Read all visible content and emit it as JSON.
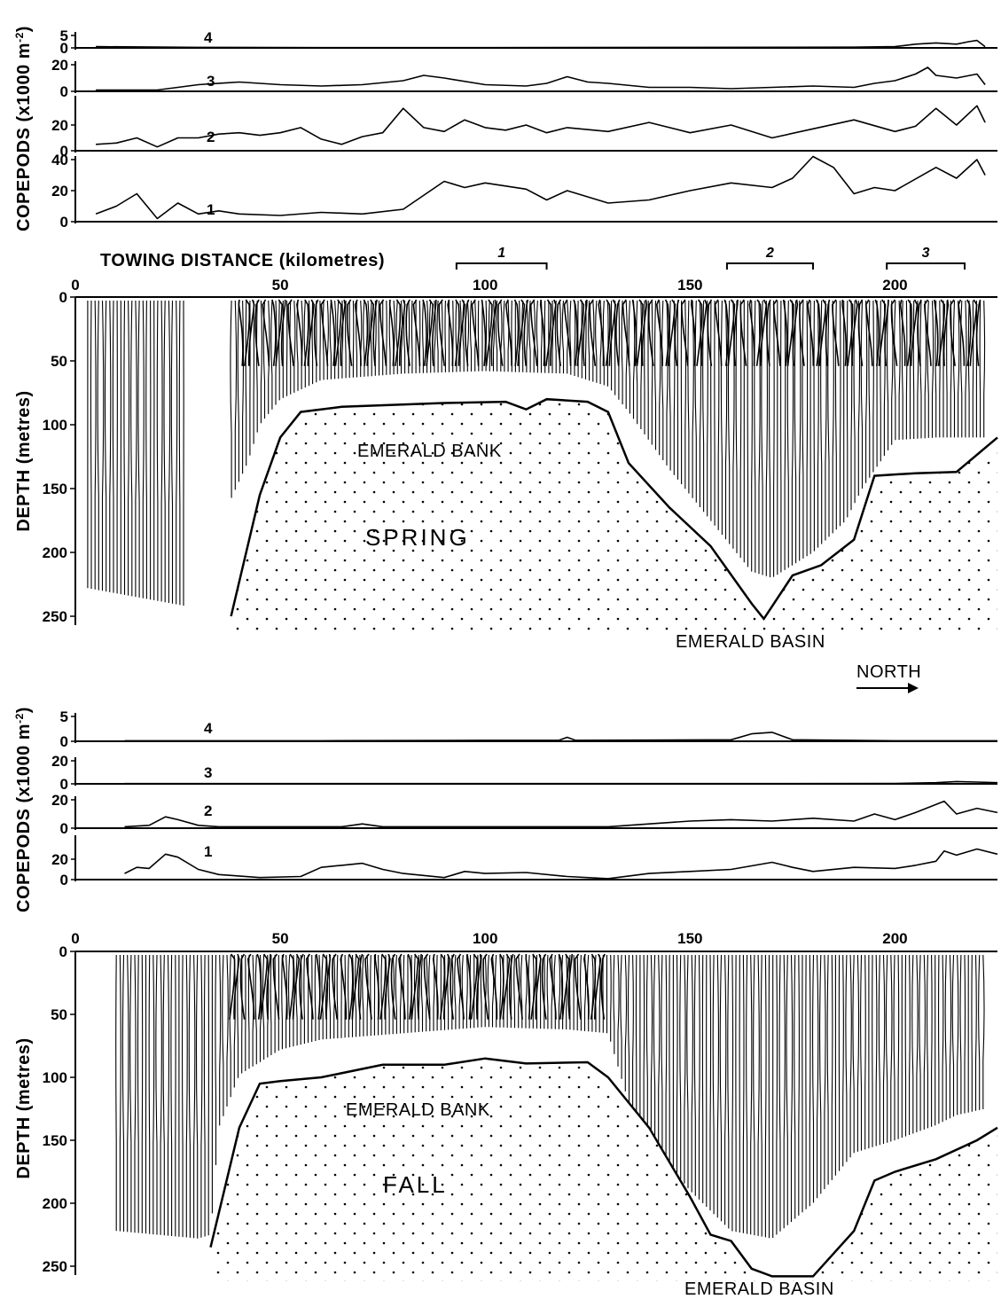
{
  "chart_data": {
    "type": "line",
    "colors": {
      "ink": "#000000",
      "paper": "#ffffff"
    },
    "shared": {
      "xlabel": "TOWING DISTANCE (kilometres)",
      "xlim": [
        0,
        225
      ],
      "x_ticks": [
        "0",
        "50",
        "100",
        "150",
        "200"
      ],
      "copepod_ylabel": "COPEPODS (x1000 m",
      "copepod_ylabel_sup": "-2",
      "copepod_ylabel_close": ")",
      "depth_ylabel": "DEPTH (metres)",
      "depth_ticks": [
        "0",
        "50",
        "100",
        "150",
        "200",
        "250"
      ],
      "depth_ylim": [
        0,
        250
      ],
      "direction_label": "NORTH"
    },
    "panels": [
      {
        "season": "SPRING",
        "bank_label": "EMERALD BANK",
        "basin_label": "EMERALD BASIN",
        "segments": [
          {
            "label": "1",
            "x_range": [
              93,
              115
            ]
          },
          {
            "label": "2",
            "x_range": [
              159,
              180
            ]
          },
          {
            "label": "3",
            "x_range": [
              198,
              217
            ]
          }
        ],
        "copepod_series": [
          {
            "name": "4",
            "ylim": [
              0,
              5
            ],
            "ticks": [
              "5",
              "0"
            ],
            "x": [
              5,
              30,
              60,
              100,
              150,
              190,
              200,
              205,
              210,
              215,
              218,
              220,
              222
            ],
            "values": [
              0.5,
              0.2,
              0.1,
              0.1,
              0.2,
              0.3,
              0.5,
              1.5,
              2,
              1.5,
              2.5,
              3,
              0.5
            ]
          },
          {
            "name": "3",
            "ylim": [
              0,
              20
            ],
            "ticks": [
              "20",
              "0"
            ],
            "x": [
              5,
              20,
              25,
              30,
              40,
              50,
              60,
              70,
              80,
              85,
              90,
              100,
              110,
              115,
              120,
              125,
              130,
              140,
              150,
              160,
              170,
              180,
              190,
              195,
              200,
              205,
              208,
              210,
              215,
              220,
              222
            ],
            "values": [
              1,
              1,
              3,
              5,
              7,
              5,
              4,
              5,
              8,
              12,
              10,
              5,
              4,
              6,
              11,
              7,
              6,
              3,
              3,
              2,
              3,
              4,
              3,
              6,
              8,
              13,
              18,
              12,
              10,
              13,
              5
            ]
          },
          {
            "name": "2",
            "ylim": [
              0,
              40
            ],
            "ticks": [
              "20",
              "0"
            ],
            "x": [
              5,
              10,
              15,
              20,
              25,
              30,
              35,
              40,
              45,
              50,
              55,
              60,
              65,
              70,
              75,
              80,
              85,
              90,
              95,
              100,
              105,
              110,
              115,
              120,
              130,
              140,
              150,
              160,
              170,
              180,
              190,
              200,
              205,
              210,
              215,
              220,
              222
            ],
            "values": [
              5,
              6,
              10,
              3,
              10,
              10,
              13,
              14,
              12,
              14,
              18,
              9,
              5,
              11,
              14,
              33,
              18,
              15,
              24,
              18,
              16,
              20,
              14,
              18,
              15,
              22,
              14,
              20,
              10,
              17,
              24,
              15,
              19,
              33,
              20,
              35,
              22
            ]
          },
          {
            "name": "1",
            "ylim": [
              0,
              40
            ],
            "ticks": [
              "40",
              "20",
              "0"
            ],
            "x": [
              5,
              10,
              15,
              20,
              25,
              30,
              35,
              40,
              50,
              60,
              70,
              80,
              90,
              95,
              100,
              110,
              115,
              120,
              130,
              140,
              150,
              160,
              170,
              175,
              180,
              185,
              190,
              195,
              200,
              210,
              215,
              220,
              222
            ],
            "values": [
              5,
              10,
              18,
              2,
              12,
              5,
              7,
              5,
              4,
              6,
              5,
              8,
              26,
              22,
              25,
              21,
              14,
              20,
              12,
              14,
              20,
              25,
              22,
              28,
              42,
              35,
              18,
              22,
              20,
              35,
              28,
              40,
              30
            ]
          }
        ],
        "seabed": {
          "x": [
            38,
            45,
            50,
            55,
            65,
            90,
            105,
            110,
            115,
            125,
            130,
            135,
            145,
            155,
            165,
            168,
            175,
            182,
            190,
            195,
            205,
            215,
            225
          ],
          "depth": [
            250,
            155,
            110,
            90,
            86,
            83,
            82,
            88,
            80,
            82,
            90,
            130,
            165,
            195,
            240,
            252,
            218,
            210,
            190,
            140,
            138,
            137,
            110
          ]
        },
        "profile_bottom": {
          "x": [
            3,
            27,
            38,
            42,
            45,
            50,
            60,
            80,
            100,
            120,
            130,
            135,
            145,
            155,
            165,
            170,
            180,
            188,
            192,
            200,
            210,
            222
          ],
          "depth": [
            228,
            242,
            158,
            130,
            100,
            80,
            65,
            60,
            58,
            60,
            70,
            90,
            135,
            175,
            215,
            220,
            200,
            175,
            150,
            112,
            110,
            110
          ]
        }
      },
      {
        "season": "FALL",
        "bank_label": "EMERALD BANK",
        "basin_label": "EMERALD BASIN",
        "copepod_series": [
          {
            "name": "4",
            "ylim": [
              0,
              5
            ],
            "ticks": [
              "5",
              "0"
            ],
            "x": [
              12,
              60,
              100,
              118,
              120,
              122,
              160,
              165,
              170,
              175,
              200,
              225
            ],
            "values": [
              0.1,
              0.1,
              0.2,
              0.2,
              0.8,
              0.2,
              0.3,
              1.5,
              1.8,
              0.3,
              0.1,
              0.1
            ]
          },
          {
            "name": "3",
            "ylim": [
              0,
              20
            ],
            "ticks": [
              "20",
              "0"
            ],
            "x": [
              12,
              100,
              150,
              200,
              210,
              215,
              220,
              225
            ],
            "values": [
              0.2,
              0.2,
              0.2,
              0.3,
              1,
              2,
              1.5,
              1
            ]
          },
          {
            "name": "2",
            "ylim": [
              0,
              20
            ],
            "ticks": [
              "20",
              "0"
            ],
            "x": [
              12,
              18,
              22,
              25,
              30,
              35,
              65,
              70,
              75,
              100,
              130,
              140,
              150,
              160,
              170,
              180,
              190,
              195,
              200,
              205,
              212,
              215,
              220,
              225
            ],
            "values": [
              1,
              2,
              8,
              6,
              2,
              1,
              1,
              3,
              1,
              1,
              1,
              3,
              5,
              6,
              5,
              7,
              5,
              10,
              6,
              11,
              19,
              10,
              14,
              11
            ]
          },
          {
            "name": "1",
            "ylim": [
              0,
              40
            ],
            "ticks": [
              "20",
              "0"
            ],
            "x": [
              12,
              15,
              18,
              22,
              25,
              30,
              35,
              45,
              55,
              60,
              65,
              70,
              75,
              80,
              90,
              95,
              100,
              110,
              120,
              130,
              140,
              150,
              160,
              170,
              175,
              180,
              190,
              200,
              205,
              210,
              212,
              215,
              220,
              225
            ],
            "values": [
              6,
              12,
              11,
              25,
              22,
              10,
              5,
              2,
              3,
              12,
              14,
              16,
              10,
              6,
              2,
              8,
              6,
              7,
              3,
              1,
              6,
              8,
              10,
              17,
              12,
              8,
              12,
              11,
              14,
              18,
              28,
              24,
              30,
              25
            ]
          }
        ],
        "seabed": {
          "x": [
            33,
            40,
            45,
            50,
            60,
            75,
            90,
            100,
            110,
            125,
            130,
            140,
            150,
            155,
            160,
            165,
            170,
            180,
            190,
            195,
            200,
            210,
            220,
            225
          ],
          "depth": [
            235,
            140,
            105,
            103,
            100,
            90,
            90,
            85,
            89,
            88,
            100,
            140,
            195,
            225,
            230,
            252,
            258,
            258,
            222,
            182,
            175,
            165,
            150,
            140
          ]
        },
        "profile_bottom": {
          "x": [
            10,
            30,
            33,
            35,
            40,
            50,
            60,
            80,
            100,
            120,
            130,
            135,
            140,
            150,
            160,
            170,
            180,
            190,
            200,
            210,
            215,
            222
          ],
          "depth": [
            222,
            228,
            225,
            140,
            98,
            78,
            70,
            65,
            60,
            62,
            65,
            120,
            150,
            190,
            222,
            228,
            200,
            160,
            150,
            138,
            130,
            125
          ]
        }
      }
    ]
  }
}
